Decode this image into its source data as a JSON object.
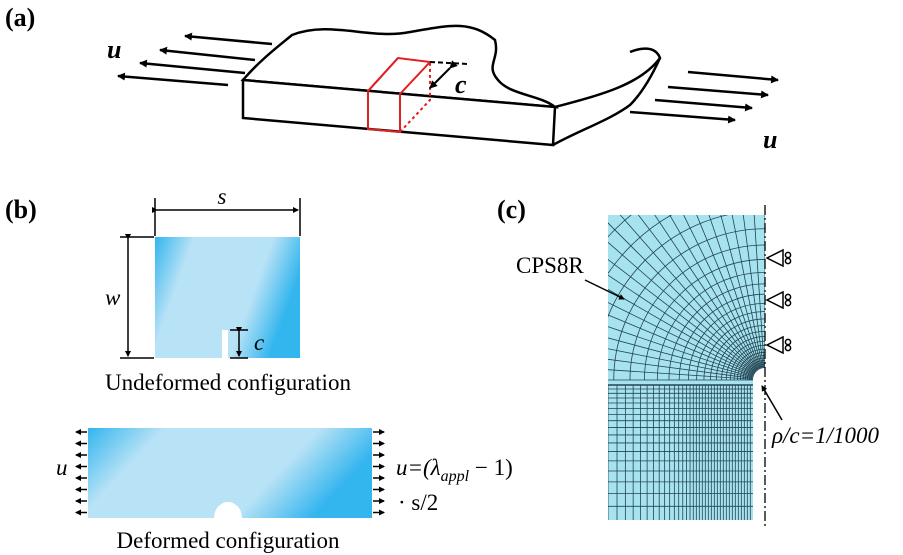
{
  "panel_a": {
    "label": "(a)",
    "load_left": "u",
    "load_right": "u",
    "crack": "c"
  },
  "panel_b": {
    "label": "(b)",
    "width": "s",
    "height": "w",
    "crack": "c",
    "undeformed_caption": "Undeformed configuration",
    "load_left": "u",
    "load_right": {
      "prefix": "u=(λ",
      "subscript": "appl",
      "suffix": " − 1)",
      "second_line": "· s/2"
    },
    "deformed_caption": "Deformed configuration"
  },
  "panel_c": {
    "label": "(c)",
    "element": "CPS8R",
    "notch_ratio": "ρ/c=1/1000"
  }
}
